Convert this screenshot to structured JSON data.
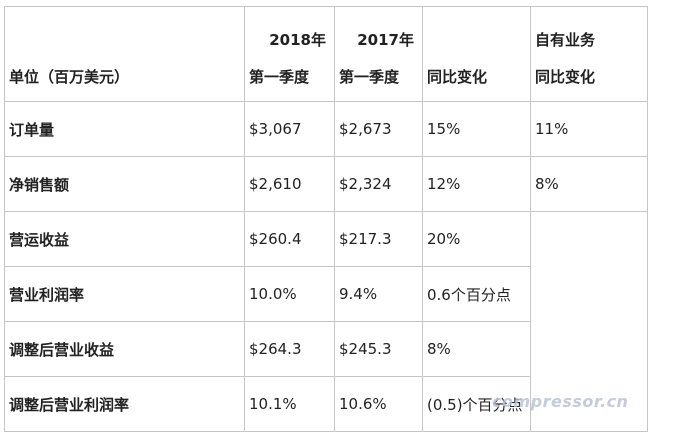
{
  "table": {
    "header": {
      "unit": "单位（百万美元）",
      "col_2018": {
        "year": "2018年",
        "period": "第一季度"
      },
      "col_2017": {
        "year": "2017年",
        "period": "第一季度"
      },
      "col_yoy": "同比变化",
      "col_own": {
        "line1": "自有业务",
        "line2": "同比变化"
      }
    },
    "rows": [
      {
        "label": "订单量",
        "v2018": "$3,067",
        "v2017": "$2,673",
        "yoy": "15%",
        "own": "11%"
      },
      {
        "label": "净销售额",
        "v2018": "$2,610",
        "v2017": "$2,324",
        "yoy": "12%",
        "own": "8%"
      },
      {
        "label": "营运收益",
        "v2018": "$260.4",
        "v2017": "$217.3",
        "yoy": "20%"
      },
      {
        "label": "营业利润率",
        "v2018": "10.0%",
        "v2017": "9.4%",
        "yoy": "0.6个百分点"
      },
      {
        "label": "调整后营业收益",
        "v2018": "$264.3",
        "v2017": "$245.3",
        "yoy": "8%"
      },
      {
        "label": "调整后营业利润率",
        "v2018": "10.1%",
        "v2017": "10.6%",
        "yoy": "(0.5)个百分点"
      }
    ]
  },
  "watermark": "compressor.cn"
}
